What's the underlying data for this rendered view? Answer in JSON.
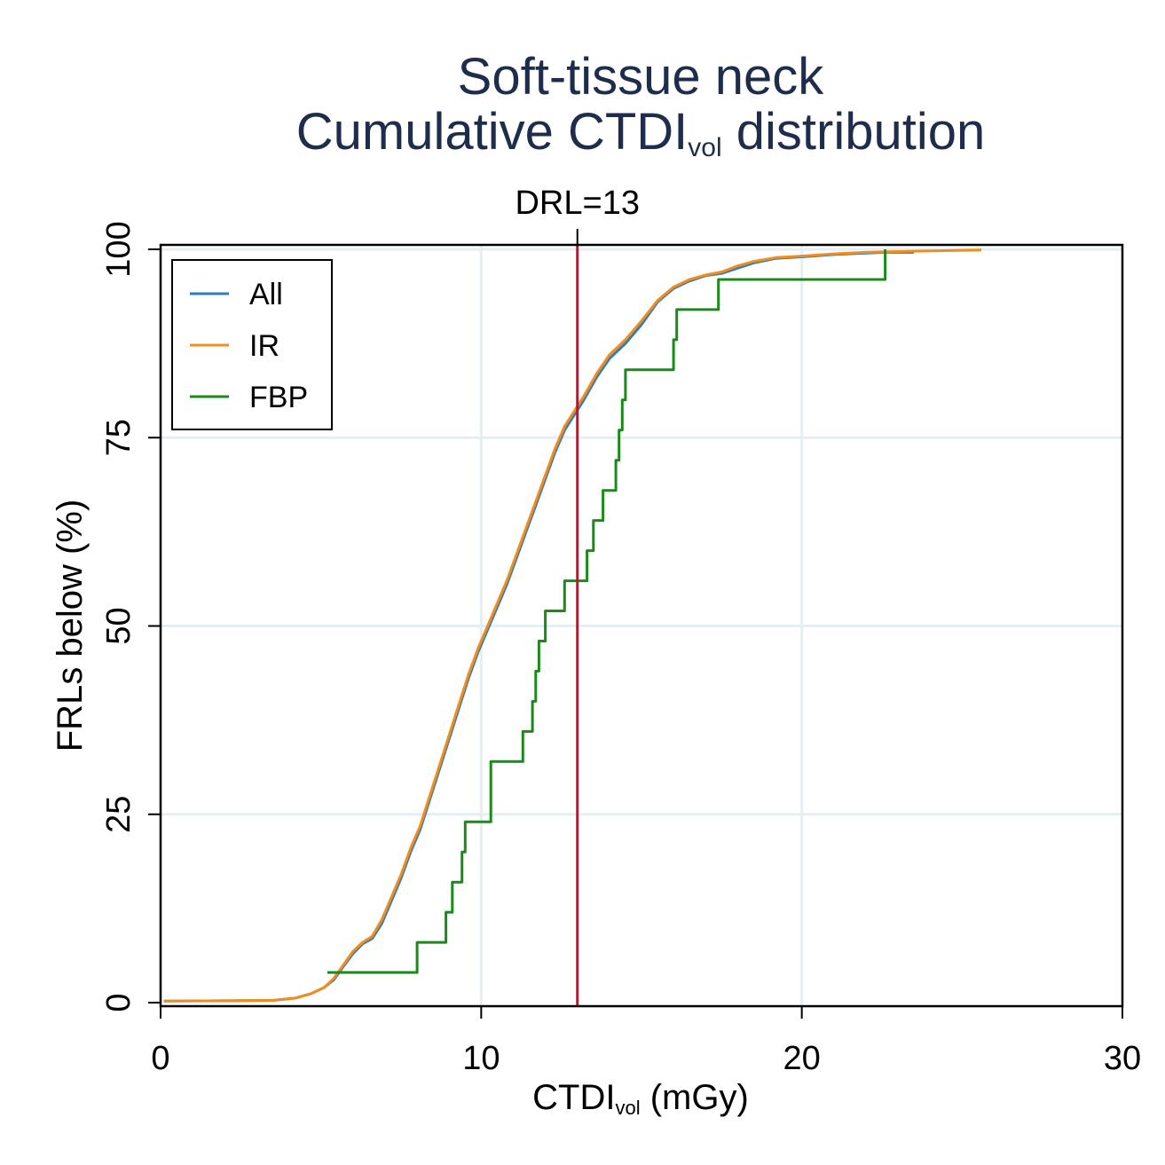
{
  "chart_data": {
    "type": "line",
    "title_line1": "Soft-tissue neck",
    "title_line2_main": "Cumulative CTDI",
    "title_line2_sub": "vol",
    "title_line2_tail": " distribution",
    "xlabel_main": "CTDI",
    "xlabel_sub": "vol",
    "xlabel_tail": " (mGy)",
    "ylabel": "FRLs below (%)",
    "xlim": [
      0,
      30
    ],
    "ylim": [
      0,
      100
    ],
    "xticks": [
      0,
      10,
      20,
      30
    ],
    "yticks": [
      0,
      25,
      50,
      75,
      100
    ],
    "xtick_labels": [
      "0",
      "10",
      "20",
      "30"
    ],
    "ytick_labels": [
      "0",
      "25",
      "50",
      "75",
      "100"
    ],
    "grid": true,
    "legend_position": "top-left",
    "reference_line": {
      "x": 13,
      "label": "DRL=13",
      "color": "#c8102e"
    },
    "series": [
      {
        "name": "All",
        "color": "#2e7ebc",
        "step": false,
        "points": [
          [
            0.1,
            0.2
          ],
          [
            3.5,
            0.3
          ],
          [
            4.2,
            0.6
          ],
          [
            4.7,
            1.2
          ],
          [
            5.1,
            2
          ],
          [
            5.4,
            3
          ],
          [
            5.7,
            4.8
          ],
          [
            6.0,
            6.5
          ],
          [
            6.3,
            7.8
          ],
          [
            6.6,
            8.5
          ],
          [
            6.9,
            10.5
          ],
          [
            7.2,
            13.5
          ],
          [
            7.5,
            16.5
          ],
          [
            7.8,
            20
          ],
          [
            8.1,
            23
          ],
          [
            8.4,
            27
          ],
          [
            8.7,
            31
          ],
          [
            9.0,
            35
          ],
          [
            9.3,
            39
          ],
          [
            9.6,
            43
          ],
          [
            9.9,
            46.5
          ],
          [
            10.2,
            49.5
          ],
          [
            10.5,
            52.5
          ],
          [
            10.8,
            55.5
          ],
          [
            11.1,
            59
          ],
          [
            11.4,
            62.5
          ],
          [
            11.7,
            66
          ],
          [
            12.0,
            69.5
          ],
          [
            12.3,
            73
          ],
          [
            12.6,
            76
          ],
          [
            12.9,
            78
          ],
          [
            13.2,
            80
          ],
          [
            13.6,
            83
          ],
          [
            14.0,
            85.5
          ],
          [
            14.5,
            87.5
          ],
          [
            15.0,
            90
          ],
          [
            15.5,
            93
          ],
          [
            16.0,
            94.8
          ],
          [
            16.5,
            95.8
          ],
          [
            17.0,
            96.5
          ],
          [
            17.5,
            96.8
          ],
          [
            18.0,
            97.5
          ],
          [
            18.5,
            98.2
          ],
          [
            19.2,
            98.8
          ],
          [
            20.0,
            99
          ],
          [
            21.0,
            99.3
          ],
          [
            22.0,
            99.5
          ],
          [
            22.6,
            99.6
          ],
          [
            23.5,
            99.6
          ]
        ]
      },
      {
        "name": "IR",
        "color": "#f28c1c",
        "step": false,
        "points": [
          [
            0.1,
            0.2
          ],
          [
            3.5,
            0.3
          ],
          [
            4.2,
            0.6
          ],
          [
            4.7,
            1.2
          ],
          [
            5.1,
            2
          ],
          [
            5.4,
            3.2
          ],
          [
            5.7,
            5
          ],
          [
            6.0,
            6.8
          ],
          [
            6.3,
            8
          ],
          [
            6.6,
            8.8
          ],
          [
            6.9,
            11
          ],
          [
            7.2,
            14
          ],
          [
            7.5,
            17
          ],
          [
            7.8,
            20.5
          ],
          [
            8.1,
            23.5
          ],
          [
            8.4,
            27.5
          ],
          [
            8.7,
            31.5
          ],
          [
            9.0,
            35.5
          ],
          [
            9.3,
            39.5
          ],
          [
            9.6,
            43.5
          ],
          [
            9.9,
            47
          ],
          [
            10.2,
            50
          ],
          [
            10.5,
            53
          ],
          [
            10.8,
            56
          ],
          [
            11.1,
            59.5
          ],
          [
            11.4,
            63
          ],
          [
            11.7,
            66.5
          ],
          [
            12.0,
            70
          ],
          [
            12.3,
            73.5
          ],
          [
            12.6,
            76.5
          ],
          [
            12.9,
            78.5
          ],
          [
            13.2,
            80.5
          ],
          [
            13.6,
            83.5
          ],
          [
            14.0,
            86
          ],
          [
            14.5,
            88
          ],
          [
            15.0,
            90.5
          ],
          [
            15.5,
            93.2
          ],
          [
            16.0,
            95
          ],
          [
            16.5,
            96
          ],
          [
            17.0,
            96.6
          ],
          [
            17.5,
            97
          ],
          [
            18.0,
            97.8
          ],
          [
            18.5,
            98.4
          ],
          [
            19.2,
            98.9
          ],
          [
            20.0,
            99.1
          ],
          [
            21.0,
            99.4
          ],
          [
            22.0,
            99.6
          ],
          [
            23.0,
            99.7
          ],
          [
            24.0,
            99.8
          ],
          [
            25.6,
            99.9
          ]
        ]
      },
      {
        "name": "FBP",
        "color": "#1a8a1a",
        "step": true,
        "points": [
          [
            5.2,
            4
          ],
          [
            8.0,
            8
          ],
          [
            8.9,
            12
          ],
          [
            9.1,
            16
          ],
          [
            9.4,
            20
          ],
          [
            9.5,
            24
          ],
          [
            10.3,
            32
          ],
          [
            11.3,
            36
          ],
          [
            11.6,
            40
          ],
          [
            11.7,
            44
          ],
          [
            11.8,
            48
          ],
          [
            12.0,
            52
          ],
          [
            12.6,
            56
          ],
          [
            13.3,
            60
          ],
          [
            13.5,
            64
          ],
          [
            13.8,
            68
          ],
          [
            14.2,
            72
          ],
          [
            14.3,
            76
          ],
          [
            14.4,
            80
          ],
          [
            14.5,
            84
          ],
          [
            16.0,
            88
          ],
          [
            16.1,
            92
          ],
          [
            17.4,
            96
          ],
          [
            22.6,
            100
          ]
        ]
      }
    ]
  }
}
